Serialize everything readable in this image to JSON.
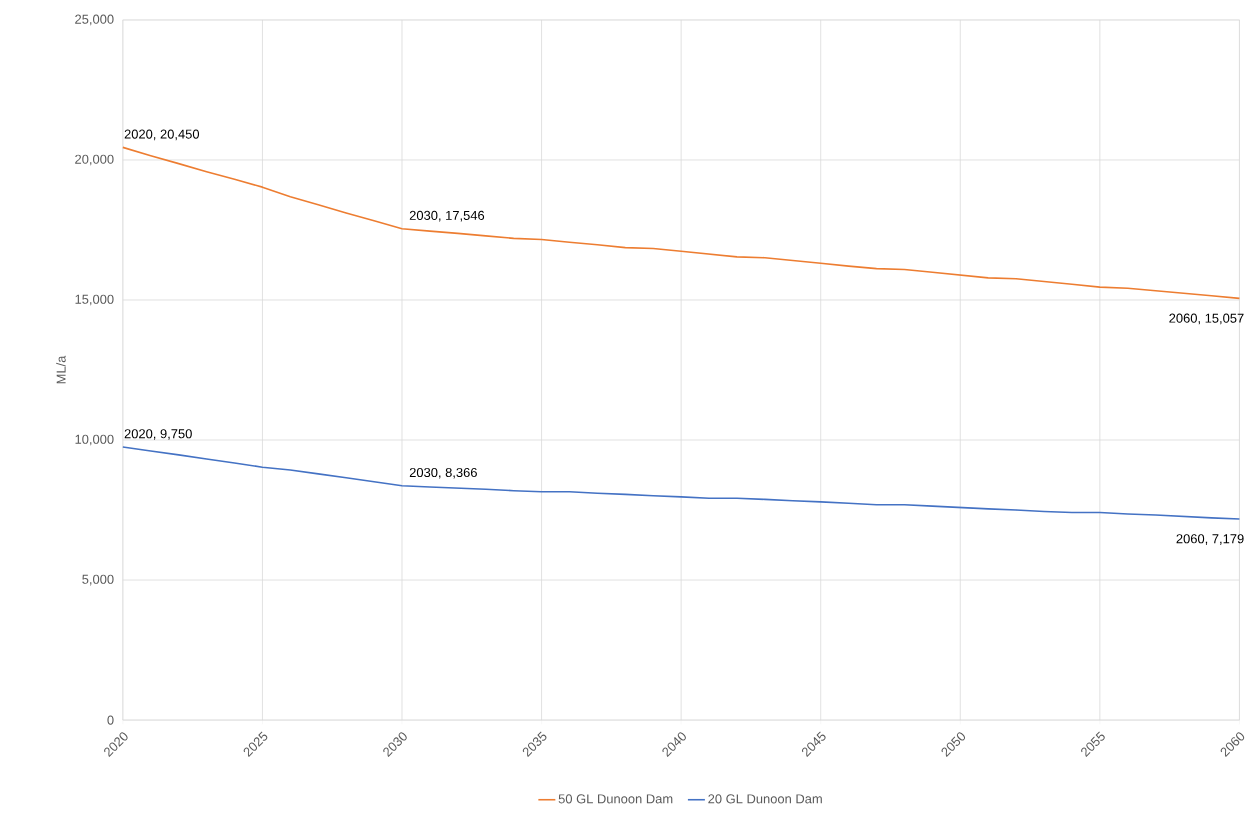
{
  "chart_data": {
    "type": "line",
    "ylabel": "ML/a",
    "x": [
      2020,
      2021,
      2022,
      2023,
      2024,
      2025,
      2026,
      2027,
      2028,
      2029,
      2030,
      2031,
      2032,
      2033,
      2034,
      2035,
      2036,
      2037,
      2038,
      2039,
      2040,
      2041,
      2042,
      2043,
      2044,
      2045,
      2046,
      2047,
      2048,
      2049,
      2050,
      2051,
      2052,
      2053,
      2054,
      2055,
      2056,
      2057,
      2058,
      2059,
      2060
    ],
    "series": [
      {
        "name": "50 GL Dunoon Dam",
        "color": "#ed7d31",
        "values": [
          20450,
          20150,
          19870,
          19580,
          19310,
          19030,
          18690,
          18400,
          18110,
          17830,
          17546,
          17460,
          17380,
          17290,
          17200,
          17160,
          17060,
          16970,
          16870,
          16840,
          16740,
          16640,
          16540,
          16510,
          16410,
          16310,
          16210,
          16120,
          16090,
          15990,
          15890,
          15790,
          15760,
          15660,
          15560,
          15460,
          15420,
          15330,
          15240,
          15150,
          15057
        ]
      },
      {
        "name": "20 GL Dunoon Dam",
        "color": "#4472c4",
        "values": [
          9750,
          9610,
          9470,
          9320,
          9180,
          9030,
          8930,
          8790,
          8650,
          8510,
          8366,
          8320,
          8280,
          8240,
          8190,
          8150,
          8150,
          8100,
          8060,
          8010,
          7970,
          7920,
          7920,
          7880,
          7830,
          7790,
          7740,
          7690,
          7690,
          7640,
          7590,
          7540,
          7500,
          7450,
          7410,
          7410,
          7360,
          7320,
          7270,
          7220,
          7179
        ]
      }
    ],
    "annotations": [
      {
        "text": "2020,  20,450",
        "x": 2020,
        "y": 20450
      },
      {
        "text": "2030,  17,546",
        "x": 2030,
        "y": 17546
      },
      {
        "text": "2060,  15,057",
        "x": 2060,
        "y": 15057
      },
      {
        "text": "2020,  9,750",
        "x": 2020,
        "y": 9750
      },
      {
        "text": "2030,  8,366",
        "x": 2030,
        "y": 8366
      },
      {
        "text": "2060,  7,179",
        "x": 2060,
        "y": 7179
      }
    ],
    "xlim": [
      2020,
      2060
    ],
    "xticks": [
      2020,
      2025,
      2030,
      2035,
      2040,
      2045,
      2050,
      2055,
      2060
    ],
    "ylim": [
      0,
      25000
    ],
    "yticks": [
      {
        "value": 0,
        "label": "0"
      },
      {
        "value": 5000,
        "label": "5,000"
      },
      {
        "value": 10000,
        "label": "10,000"
      },
      {
        "value": 15000,
        "label": "15,000"
      },
      {
        "value": 20000,
        "label": "20,000"
      },
      {
        "value": 25000,
        "label": "25,000"
      }
    ],
    "grid": true,
    "legend": "bottom",
    "marker": "none",
    "line_style": "solid"
  }
}
